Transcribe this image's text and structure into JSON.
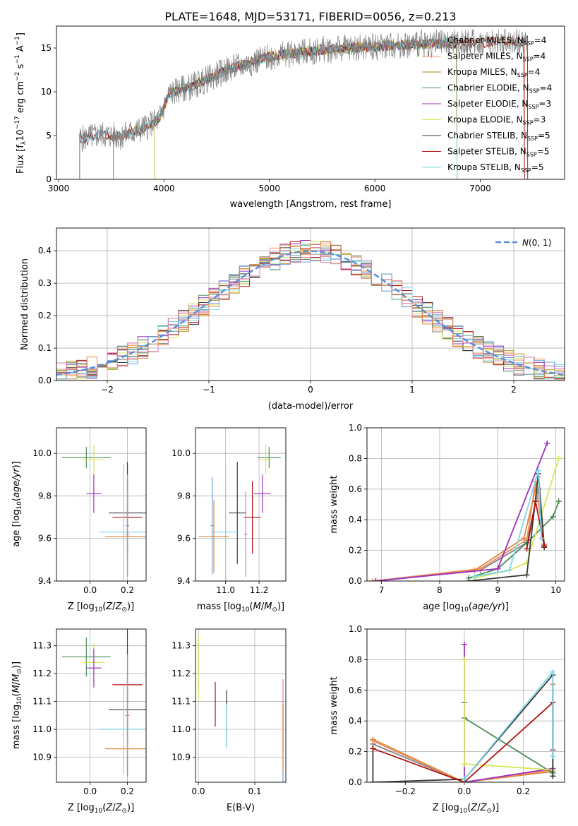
{
  "figure": {
    "title": "PLATE=1648, MJD=53171, FIBERID=0056, z=0.213"
  },
  "colors": {
    "models": [
      "#808080",
      "#f28d6a",
      "#b8860b",
      "#4a8c5a",
      "#9b30c0",
      "#d8e65a",
      "#3a3a3a",
      "#b01010",
      "#7dd8e8"
    ],
    "models_light": [
      "#6a9de0",
      "#e07ab4",
      "#e28a3c"
    ],
    "gaussian": "#5a8fd8",
    "grid": "#b0b0b0"
  },
  "chart_data": [
    {
      "type": "line",
      "id": "spectrum",
      "xlabel": "wavelength [Angstrom, rest frame]",
      "ylabel": "Flux [f_λ10^-17 erg cm^-2 s^-1 A^-1]",
      "xlim": [
        2980,
        7800
      ],
      "ylim": [
        0,
        17.5
      ],
      "xticks": [
        3000,
        4000,
        5000,
        6000,
        7000
      ],
      "yticks": [
        0,
        5,
        10,
        15
      ],
      "grid": false,
      "legend": "right",
      "legend_entries": [
        {
          "label": "Chabrier MILES, N",
          "sub": "SSP",
          "tail": "=4",
          "color": "#808080"
        },
        {
          "label": "Salpeter MILES, N",
          "sub": "SSP",
          "tail": "=4",
          "color": "#f28d6a"
        },
        {
          "label": "Kroupa MILES, N",
          "sub": "SSP",
          "tail": "=4",
          "color": "#b8860b"
        },
        {
          "label": "Chabrier ELODIE, N",
          "sub": "SSP",
          "tail": "=4",
          "color": "#4a8c5a"
        },
        {
          "label": "Salpeter ELODIE, N",
          "sub": "SSP",
          "tail": "=3",
          "color": "#9b30c0"
        },
        {
          "label": "Kroupa ELODIE, N",
          "sub": "SSP",
          "tail": "=3",
          "color": "#d8e65a"
        },
        {
          "label": "Chabrier STELIB, N",
          "sub": "SSP",
          "tail": "=5",
          "color": "#3a3a3a"
        },
        {
          "label": "Salpeter STELIB, N",
          "sub": "SSP",
          "tail": "=5",
          "color": "#b01010"
        },
        {
          "label": "Kroupa STELIB, N",
          "sub": "SSP",
          "tail": "=5",
          "color": "#7dd8e8"
        }
      ],
      "continuum_knots": [
        [
          3200,
          4.6
        ],
        [
          3400,
          5.1
        ],
        [
          3600,
          4.9
        ],
        [
          3800,
          5.8
        ],
        [
          3950,
          6.8
        ],
        [
          4050,
          9.8
        ],
        [
          4300,
          10.8
        ],
        [
          4600,
          12.5
        ],
        [
          5000,
          14.0
        ],
        [
          5500,
          14.8
        ],
        [
          6000,
          15.2
        ],
        [
          6500,
          15.5
        ],
        [
          7000,
          15.6
        ],
        [
          7450,
          15.8
        ]
      ]
    },
    {
      "type": "line",
      "id": "residual-histogram",
      "xlabel": "(data-model)/error",
      "ylabel": "Normed distribution",
      "xlim": [
        -2.5,
        2.5
      ],
      "ylim": [
        0,
        0.47
      ],
      "xticks": [
        -2,
        -1,
        0,
        1,
        2
      ],
      "yticks": [
        0.0,
        0.1,
        0.2,
        0.3,
        0.4
      ],
      "grid": true,
      "legend": "top-right",
      "legend_label": "N(0,1)",
      "bin_edges_start": -2.5,
      "bin_width": 0.1
    },
    {
      "type": "scatter",
      "id": "age-vs-z",
      "xlabel": "Z [log10(Z/Z⊙)]",
      "ylabel": "age [log10(age/yr)]",
      "xlim": [
        -0.18,
        0.3
      ],
      "ylim": [
        9.4,
        10.12
      ],
      "xticks": [
        0.0,
        0.2
      ],
      "yticks": [
        9.4,
        9.6,
        9.8,
        10.0
      ],
      "points": [
        {
          "x": -0.02,
          "y": 9.98,
          "xerr": 0.13,
          "yerr": 0.05,
          "color": "#4a8c5a"
        },
        {
          "x": 0.02,
          "y": 9.97,
          "xerr": 0.06,
          "yerr": 0.07,
          "color": "#d8e65a"
        },
        {
          "x": 0.02,
          "y": 9.81,
          "xerr": 0.04,
          "yerr": 0.09,
          "color": "#9b30c0"
        },
        {
          "x": 0.2,
          "y": 9.72,
          "xerr": 0.1,
          "yerr": 0.24,
          "color": "#3a3a3a"
        },
        {
          "x": 0.2,
          "y": 9.7,
          "xerr": 0.08,
          "yerr": 0.17,
          "color": "#b01010"
        },
        {
          "x": 0.18,
          "y": 9.63,
          "xerr": 0.13,
          "yerr": 0.32,
          "color": "#7dd8e8"
        },
        {
          "x": 0.2,
          "y": 9.61,
          "xerr": 0.12,
          "yerr": 0.17,
          "color": "#e28a3c"
        },
        {
          "x": 0.2,
          "y": 9.66,
          "xerr": 0.01,
          "yerr": 0.24,
          "color": "#6a9de0"
        },
        {
          "x": 0.2,
          "y": 9.62,
          "xerr": 0.01,
          "yerr": 0.2,
          "color": "#e07ab4"
        }
      ]
    },
    {
      "type": "scatter",
      "id": "age-vs-mass",
      "xlabel": "mass [log10(M/M⊙)]",
      "ylabel": "",
      "xlim": [
        10.82,
        11.36
      ],
      "ylim": [
        9.4,
        10.12
      ],
      "xticks": [
        11.0,
        11.2
      ],
      "yticks": [
        9.4,
        9.6,
        9.8,
        10.0
      ],
      "points": [
        {
          "x": 11.26,
          "y": 9.98,
          "xerr": 0.07,
          "yerr": 0.05,
          "color": "#4a8c5a"
        },
        {
          "x": 11.24,
          "y": 9.97,
          "xerr": 0.04,
          "yerr": 0.07,
          "color": "#d8e65a"
        },
        {
          "x": 11.22,
          "y": 9.81,
          "xerr": 0.05,
          "yerr": 0.09,
          "color": "#9b30c0"
        },
        {
          "x": 11.07,
          "y": 9.72,
          "xerr": 0.05,
          "yerr": 0.24,
          "color": "#3a3a3a"
        },
        {
          "x": 11.16,
          "y": 9.7,
          "xerr": 0.05,
          "yerr": 0.17,
          "color": "#b01010"
        },
        {
          "x": 11.0,
          "y": 9.63,
          "xerr": 0.08,
          "yerr": 0.32,
          "color": "#7dd8e8"
        },
        {
          "x": 10.93,
          "y": 9.61,
          "xerr": 0.09,
          "yerr": 0.17,
          "color": "#e28a3c"
        },
        {
          "x": 10.92,
          "y": 9.66,
          "xerr": 0.01,
          "yerr": 0.23,
          "color": "#6a9de0"
        },
        {
          "x": 11.12,
          "y": 9.62,
          "xerr": 0.01,
          "yerr": 0.2,
          "color": "#e07ab4"
        }
      ]
    },
    {
      "type": "line",
      "id": "mass-weight-vs-age",
      "xlabel": "age [log10(age/yr)]",
      "ylabel": "mass weight",
      "xlim": [
        6.75,
        10.15
      ],
      "ylim": [
        0,
        1
      ],
      "xticks": [
        7,
        8,
        9,
        10
      ],
      "yticks": [
        0.0,
        0.2,
        0.4,
        0.6,
        0.8,
        1.0
      ],
      "series": [
        {
          "color": "#808080",
          "x": [
            6.9,
            8.7,
            9.5,
            9.7,
            9.8
          ],
          "y": [
            0.0,
            0.07,
            0.25,
            0.6,
            0.24
          ]
        },
        {
          "color": "#f28d6a",
          "x": [
            6.85,
            8.7,
            9.5,
            9.65,
            9.8
          ],
          "y": [
            0.0,
            0.08,
            0.27,
            0.65,
            0.22
          ]
        },
        {
          "color": "#e28a3c",
          "x": [
            6.9,
            8.6,
            9.45,
            9.7,
            9.8
          ],
          "y": [
            0.0,
            0.07,
            0.28,
            0.68,
            0.23
          ]
        },
        {
          "color": "#4a8c5a",
          "x": [
            8.5,
            9.0,
            9.5,
            9.95,
            10.05
          ],
          "y": [
            0.02,
            0.08,
            0.25,
            0.42,
            0.52
          ]
        },
        {
          "color": "#9b30c0",
          "x": [
            6.9,
            9.0,
            9.85
          ],
          "y": [
            0.0,
            0.08,
            0.9
          ]
        },
        {
          "color": "#d8e65a",
          "x": [
            8.6,
            9.2,
            9.5,
            10.05
          ],
          "y": [
            0.02,
            0.07,
            0.12,
            0.8
          ]
        },
        {
          "color": "#3a3a3a",
          "x": [
            8.5,
            9.5,
            9.7,
            9.8
          ],
          "y": [
            0.0,
            0.04,
            0.7,
            0.22
          ]
        },
        {
          "color": "#b01010",
          "x": [
            9.5,
            9.65,
            9.8
          ],
          "y": [
            0.21,
            0.52,
            0.23
          ]
        },
        {
          "color": "#7dd8e8",
          "x": [
            8.6,
            9.2,
            9.7,
            9.75
          ],
          "y": [
            0.03,
            0.07,
            0.72,
            0.28
          ]
        }
      ]
    },
    {
      "type": "scatter",
      "id": "mass-vs-z",
      "xlabel": "Z [log10(Z/Z⊙)]",
      "ylabel": "mass [log10(M/M⊙)]",
      "xlim": [
        -0.18,
        0.3
      ],
      "ylim": [
        10.81,
        11.36
      ],
      "xticks": [
        0.0,
        0.2
      ],
      "yticks": [
        10.9,
        11.0,
        11.1,
        11.2,
        11.3
      ],
      "points": [
        {
          "x": -0.02,
          "y": 11.26,
          "xerr": 0.13,
          "yerr": 0.07,
          "color": "#4a8c5a"
        },
        {
          "x": 0.02,
          "y": 11.24,
          "xerr": 0.06,
          "yerr": 0.07,
          "color": "#d8e65a"
        },
        {
          "x": 0.02,
          "y": 11.22,
          "xerr": 0.04,
          "yerr": 0.07,
          "color": "#9b30c0"
        },
        {
          "x": 0.2,
          "y": 11.07,
          "xerr": 0.1,
          "yerr": 0.11,
          "color": "#3a3a3a"
        },
        {
          "x": 0.2,
          "y": 11.16,
          "xerr": 0.08,
          "yerr": 0.32,
          "color": "#b01010"
        },
        {
          "x": 0.18,
          "y": 11.0,
          "xerr": 0.13,
          "yerr": 0.16,
          "color": "#7dd8e8"
        },
        {
          "x": 0.2,
          "y": 10.93,
          "xerr": 0.12,
          "yerr": 0.1,
          "color": "#e28a3c"
        },
        {
          "x": 0.2,
          "y": 11.05,
          "xerr": 0.01,
          "yerr": 0.22,
          "color": "#6a9de0"
        },
        {
          "x": 0.2,
          "y": 11.05,
          "xerr": 0.01,
          "yerr": 0.13,
          "color": "#e07ab4"
        }
      ]
    },
    {
      "type": "scatter",
      "id": "mass-vs-ebv",
      "xlabel": "E(B-V)",
      "ylabel": "",
      "xlim": [
        -0.005,
        0.155
      ],
      "ylim": [
        10.81,
        11.36
      ],
      "xticks": [
        0.0,
        0.1
      ],
      "yticks": [
        10.9,
        11.0,
        11.1,
        11.2,
        11.3
      ],
      "points": [
        {
          "x": 0.0,
          "y": 11.24,
          "xerr": 0,
          "yerr": 0.1,
          "color": "#4a8c5a"
        },
        {
          "x": 0.0,
          "y": 11.22,
          "xerr": 0,
          "yerr": 0.12,
          "color": "#d8e65a"
        },
        {
          "x": 0.03,
          "y": 11.09,
          "xerr": 0,
          "yerr": 0.08,
          "color": "#b01010"
        },
        {
          "x": 0.05,
          "y": 11.04,
          "xerr": 0,
          "yerr": 0.1,
          "color": "#3a3a3a"
        },
        {
          "x": 0.05,
          "y": 11.01,
          "xerr": 0,
          "yerr": 0.08,
          "color": "#7dd8e8"
        },
        {
          "x": 0.15,
          "y": 11.05,
          "xerr": 0,
          "yerr": 0.13,
          "color": "#e07ab4"
        },
        {
          "x": 0.15,
          "y": 10.95,
          "xerr": 0,
          "yerr": 0.14,
          "color": "#6a9de0"
        },
        {
          "x": 0.15,
          "y": 10.97,
          "xerr": 0,
          "yerr": 0.12,
          "color": "#e28a3c"
        }
      ]
    },
    {
      "type": "line",
      "id": "mass-weight-vs-z",
      "xlabel": "Z [log10(Z/Z⊙)]",
      "ylabel": "mass weight",
      "xlim": [
        -0.33,
        0.34
      ],
      "ylim": [
        0,
        1
      ],
      "xticks": [
        -0.2,
        0.0,
        0.2
      ],
      "yticks": [
        0.0,
        0.2,
        0.4,
        0.6,
        0.8,
        1.0
      ],
      "series": [
        {
          "color": "#808080",
          "x": [
            -0.31,
            0.0,
            0.3,
            0.3
          ],
          "y": [
            0.25,
            0.0,
            0.08,
            0.64
          ]
        },
        {
          "color": "#f28d6a",
          "x": [
            -0.31,
            0.0,
            0.3,
            0.3
          ],
          "y": [
            0.27,
            0.0,
            0.08,
            0.64
          ]
        },
        {
          "color": "#e28a3c",
          "x": [
            -0.31,
            0.0,
            0.3
          ],
          "y": [
            0.28,
            0.0,
            0.07
          ]
        },
        {
          "color": "#4a8c5a",
          "x": [
            0.0,
            0.0,
            0.3,
            0.3
          ],
          "y": [
            0.52,
            0.42,
            0.06,
            0.04
          ]
        },
        {
          "color": "#9b30c0",
          "x": [
            0.0,
            0.0,
            0.3
          ],
          "y": [
            0.9,
            0.0,
            0.09
          ]
        },
        {
          "color": "#d8e65a",
          "x": [
            0.0,
            0.0,
            0.3
          ],
          "y": [
            0.8,
            0.12,
            0.08
          ]
        },
        {
          "color": "#3a3a3a",
          "x": [
            -0.31,
            -0.31,
            0.0,
            0.3,
            0.3
          ],
          "y": [
            0.22,
            0.0,
            0.02,
            0.7,
            0.04
          ]
        },
        {
          "color": "#b01010",
          "x": [
            -0.31,
            0.0,
            0.3,
            0.3
          ],
          "y": [
            0.22,
            0.0,
            0.52,
            0.21
          ]
        },
        {
          "color": "#7dd8e8",
          "x": [
            0.0,
            0.3,
            0.3
          ],
          "y": [
            0.02,
            0.72,
            0.17
          ]
        }
      ]
    }
  ]
}
